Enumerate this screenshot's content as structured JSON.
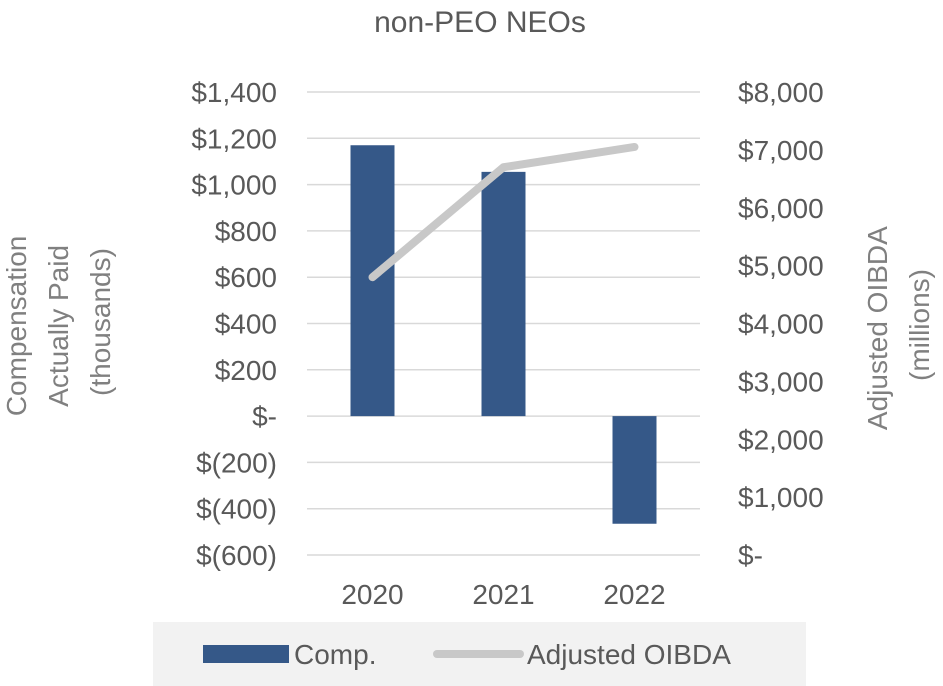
{
  "chart_data": {
    "type": "bar",
    "title": "non-PEO NEOs",
    "categories": [
      "2020",
      "2021",
      "2022"
    ],
    "y_left": {
      "label_lines": [
        "Compensation",
        "Actually Paid",
        "(thousands)"
      ],
      "range": [
        -600,
        1400
      ],
      "ticks": [
        1400,
        1200,
        1000,
        800,
        600,
        400,
        200,
        0,
        -200,
        -400,
        -600
      ],
      "tick_labels": [
        "$1,400",
        "$1,200",
        "$1,000",
        "$800",
        "$600",
        "$400",
        "$200",
        "$-",
        "$(200)",
        "$(400)",
        "$(600)"
      ]
    },
    "y_right": {
      "label_lines": [
        "Adjusted OIBDA",
        "(millions)"
      ],
      "range": [
        0,
        8000
      ],
      "ticks": [
        8000,
        7000,
        6000,
        5000,
        4000,
        3000,
        2000,
        1000,
        0
      ],
      "tick_labels": [
        "$8,000",
        "$7,000",
        "$6,000",
        "$5,000",
        "$4,000",
        "$3,000",
        "$2,000",
        "$1,000",
        "$-"
      ]
    },
    "grid": true,
    "legend_position": "bottom",
    "series": [
      {
        "name": "Comp.",
        "type": "bar",
        "axis": "left",
        "color": "#355888",
        "values": [
          1170,
          1055,
          -465
        ]
      },
      {
        "name": "Adjusted OIBDA",
        "type": "line",
        "axis": "right",
        "color": "#c8c8c8",
        "values": [
          4800,
          6700,
          7050
        ]
      }
    ]
  }
}
